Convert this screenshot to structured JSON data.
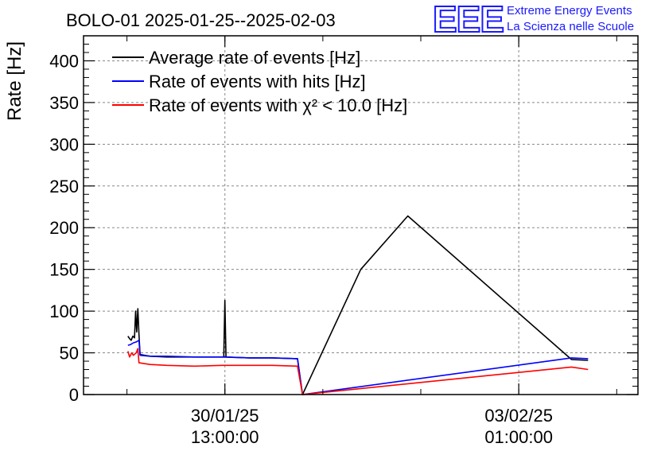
{
  "header": {
    "title": "BOLO-01 2025-01-25--2025-02-03",
    "logo_mark": "EEE",
    "logo_line1": "Extreme Energy Events",
    "logo_line2": "La Scienza nelle Scuole",
    "logo_color": "#1a1aff"
  },
  "chart_data": {
    "type": "line",
    "title": "BOLO-01 2025-01-25--2025-02-03",
    "xlabel": "",
    "ylabel": "Rate [Hz]",
    "ylim": [
      0,
      430
    ],
    "xlim": [
      0,
      100
    ],
    "yticks": [
      0,
      50,
      100,
      150,
      200,
      250,
      300,
      350,
      400
    ],
    "xticks": [
      {
        "x": 25.5,
        "line1": "30/01/25",
        "line2": "13:00:00"
      },
      {
        "x": 78.5,
        "line1": "03/02/25",
        "line2": "01:00:00"
      }
    ],
    "grid": true,
    "legend_position": "top-left",
    "series": [
      {
        "name": "Average rate of events [Hz]",
        "color": "#000000",
        "points": [
          [
            8.0,
            70
          ],
          [
            8.3,
            67
          ],
          [
            8.6,
            65
          ],
          [
            8.9,
            70
          ],
          [
            9.2,
            68
          ],
          [
            9.4,
            100
          ],
          [
            9.6,
            75
          ],
          [
            9.8,
            103
          ],
          [
            10.0,
            72
          ],
          [
            10.2,
            48
          ],
          [
            12,
            46
          ],
          [
            15,
            45
          ],
          [
            20,
            45
          ],
          [
            25.3,
            45
          ],
          [
            25.5,
            113
          ],
          [
            25.7,
            45
          ],
          [
            30,
            44
          ],
          [
            34,
            44
          ],
          [
            38.6,
            43
          ],
          [
            39.5,
            0
          ],
          [
            50,
            150
          ],
          [
            58.5,
            214
          ],
          [
            88,
            42
          ],
          [
            91,
            41
          ]
        ]
      },
      {
        "name": "Rate of events with hits [Hz]",
        "color": "#0000ff",
        "points": [
          [
            8.0,
            59
          ],
          [
            8.5,
            60
          ],
          [
            9.0,
            62
          ],
          [
            9.5,
            63
          ],
          [
            10.0,
            65
          ],
          [
            10.2,
            47
          ],
          [
            12,
            46
          ],
          [
            15,
            46
          ],
          [
            20,
            45
          ],
          [
            25,
            45
          ],
          [
            30,
            44
          ],
          [
            34,
            44
          ],
          [
            38.6,
            43
          ],
          [
            39.5,
            0
          ],
          [
            88,
            44
          ],
          [
            91,
            43
          ]
        ]
      },
      {
        "name": "Rate of events with χ² < 10.0 [Hz]",
        "color": "#ff0000",
        "points": [
          [
            8.0,
            52
          ],
          [
            8.3,
            45
          ],
          [
            8.7,
            50
          ],
          [
            9.0,
            47
          ],
          [
            9.5,
            50
          ],
          [
            9.8,
            55
          ],
          [
            10.0,
            38
          ],
          [
            12,
            36
          ],
          [
            15,
            35
          ],
          [
            20,
            34
          ],
          [
            25,
            35
          ],
          [
            30,
            35
          ],
          [
            34,
            35
          ],
          [
            38.6,
            34
          ],
          [
            39.5,
            0
          ],
          [
            88,
            33
          ],
          [
            91,
            30
          ]
        ]
      }
    ]
  }
}
